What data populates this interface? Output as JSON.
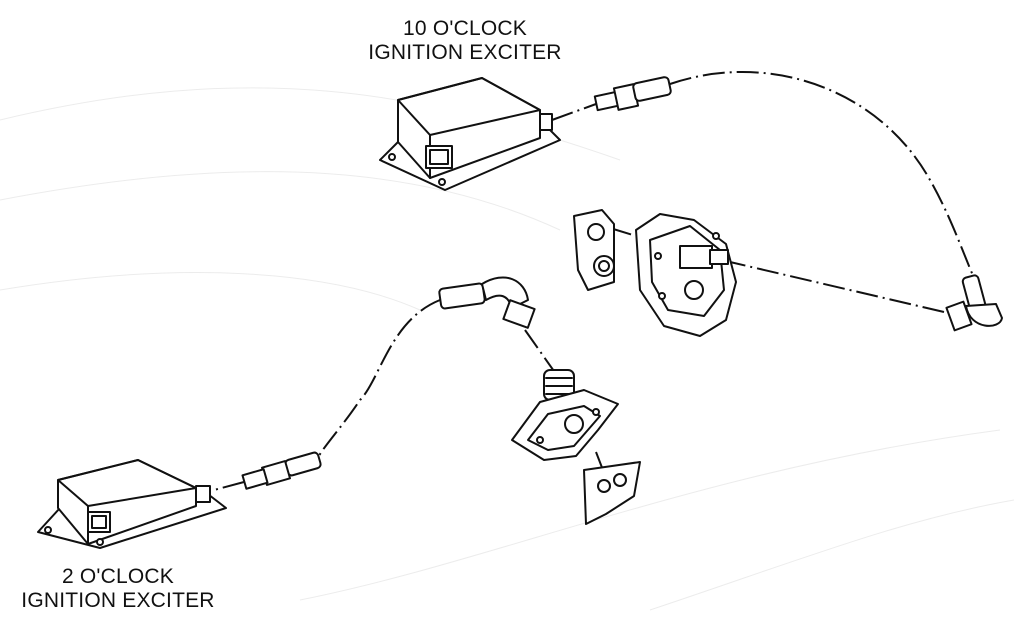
{
  "labels": {
    "exciter_10": {
      "line1": "10 O'CLOCK",
      "line2": "IGNITION EXCITER"
    },
    "exciter_2": {
      "line1": "2 O'CLOCK",
      "line2": "IGNITION EXCITER"
    }
  },
  "colors": {
    "ink": "#111111",
    "background": "#ffffff"
  }
}
